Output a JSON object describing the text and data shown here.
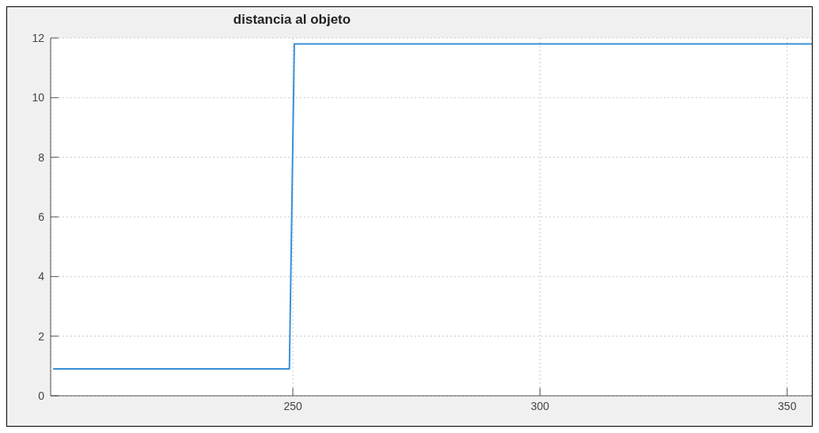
{
  "chart_data": {
    "type": "line",
    "title": "distancia al objeto",
    "x": [
      201.5,
      249.3,
      250.3,
      355
    ],
    "series": [
      {
        "color": "#3a8fd8",
        "values": [
          0.9,
          0.9,
          11.8,
          11.8
        ]
      }
    ],
    "xlim": [
      201,
      355
    ],
    "xticks": [
      250,
      300,
      350
    ],
    "ylim": [
      0,
      12
    ],
    "yticks": [
      0,
      2,
      4,
      6,
      8,
      10,
      12
    ],
    "grid": true,
    "marker": "none",
    "line_style": "solid"
  }
}
